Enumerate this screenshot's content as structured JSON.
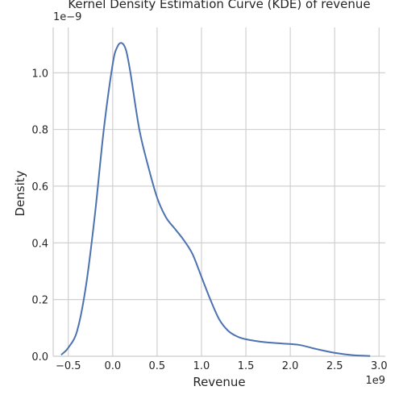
{
  "chart_data": {
    "type": "line",
    "title": "Kernel Density Estimation Curve (KDE) of revenue",
    "xlabel": "Revenue",
    "ylabel": "Density",
    "x_offset_label": "1e9",
    "y_offset_label": "1e−9",
    "xlim": [
      -0.67,
      3.07
    ],
    "ylim": [
      0.0,
      1.16
    ],
    "x_ticks": [
      -0.5,
      0.0,
      0.5,
      1.0,
      1.5,
      2.0,
      2.5,
      3.0
    ],
    "x_tick_labels": [
      "−0.5",
      "0.0",
      "0.5",
      "1.0",
      "1.5",
      "2.0",
      "2.5",
      "3.0"
    ],
    "y_ticks": [
      0.0,
      0.2,
      0.4,
      0.6,
      0.8,
      1.0
    ],
    "y_tick_labels": [
      "0.0",
      "0.2",
      "0.4",
      "0.6",
      "0.8",
      "1.0"
    ],
    "grid": true,
    "line_color": "#4c72b0",
    "series": [
      {
        "x": [
          -0.58,
          -0.5,
          -0.4,
          -0.3,
          -0.2,
          -0.1,
          0.0,
          0.05,
          0.1,
          0.15,
          0.2,
          0.3,
          0.4,
          0.5,
          0.6,
          0.7,
          0.8,
          0.9,
          1.0,
          1.1,
          1.2,
          1.3,
          1.4,
          1.5,
          1.7,
          1.9,
          2.1,
          2.3,
          2.5,
          2.7,
          2.9
        ],
        "y": [
          0.005,
          0.03,
          0.09,
          0.25,
          0.5,
          0.8,
          1.03,
          1.09,
          1.105,
          1.08,
          1.0,
          0.8,
          0.67,
          0.56,
          0.49,
          0.45,
          0.41,
          0.36,
          0.28,
          0.2,
          0.13,
          0.09,
          0.07,
          0.06,
          0.05,
          0.045,
          0.04,
          0.025,
          0.012,
          0.004,
          0.001
        ]
      }
    ]
  }
}
